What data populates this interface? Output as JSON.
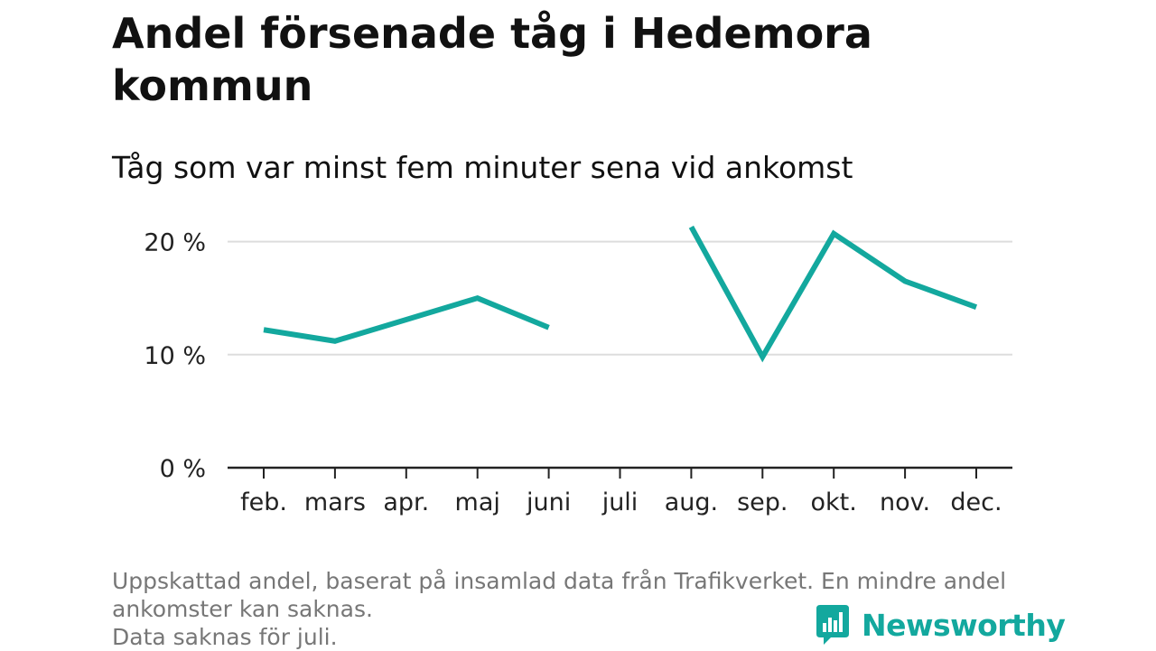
{
  "header": {
    "title": "Andel försenade tåg i Hedemora kommun",
    "subtitle": "Tåg som var minst fem minuter sena vid ankomst"
  },
  "footer": {
    "note_lines": [
      "Uppskattad andel, baserat på insamlad data från Trafikverket. En mindre andel",
      "ankomster kan saknas.",
      "Data saknas för juli."
    ],
    "brand": "Newsworthy",
    "brand_icon": "bar-chart-speech-bubble-icon"
  },
  "colors": {
    "line": "#13a89e",
    "grid": "#dddddd",
    "axis": "#222222"
  },
  "chart_data": {
    "type": "line",
    "title": "Andel försenade tåg i Hedemora kommun",
    "subtitle": "Tåg som var minst fem minuter sena vid ankomst",
    "xlabel": "",
    "ylabel": "",
    "categories": [
      "feb.",
      "mars",
      "apr.",
      "maj",
      "juni",
      "juli",
      "aug.",
      "sep.",
      "okt.",
      "nov.",
      "dec."
    ],
    "series": [
      {
        "values": [
          12.2,
          11.2,
          13.1,
          15.0,
          12.4,
          null,
          21.3,
          9.8,
          20.7,
          16.5,
          14.2
        ]
      }
    ],
    "ylim": [
      0,
      23
    ],
    "yticks": [
      0,
      10,
      20
    ],
    "ytick_labels": [
      "0 %",
      "10 %",
      "20 %"
    ],
    "grid": true,
    "legend": "none"
  }
}
